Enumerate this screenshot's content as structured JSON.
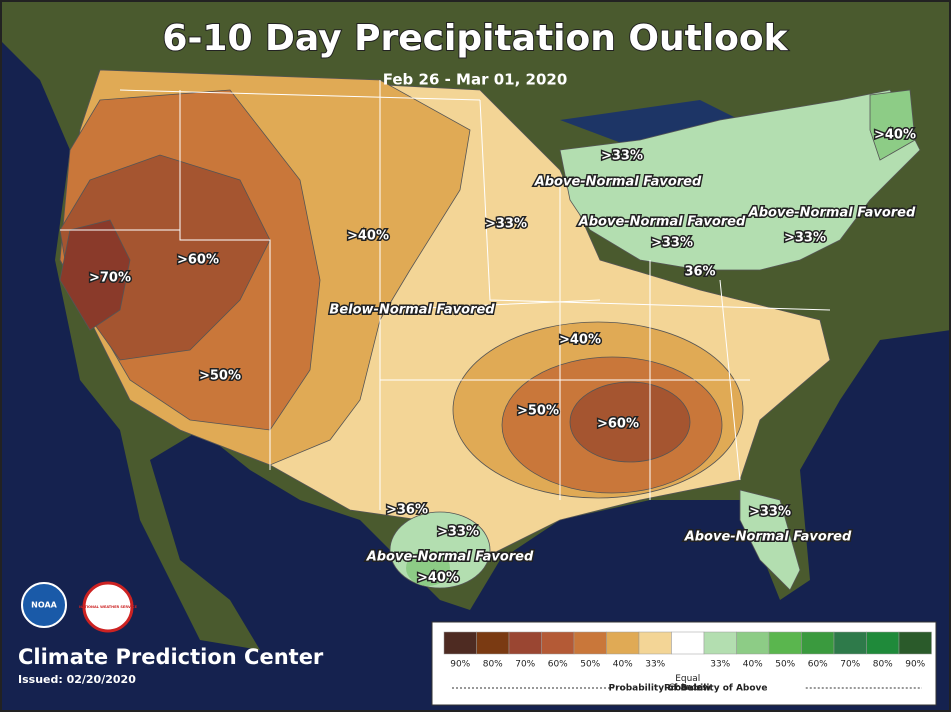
{
  "title": "6-10 Day Precipitation Outlook",
  "subtitle": "Feb 26 - Mar 01, 2020",
  "map_labels": [
    ">70%",
    ">60%",
    ">50%",
    ">40%",
    "Below-Normal Favored",
    ">33%",
    ">33%",
    "Above-Normal Favored",
    "Above-Normal Favored",
    "Above-Normal Favored",
    ">40%",
    ">33%",
    ">33%",
    "36%",
    ">40%",
    ">50%",
    ">60%",
    ">36%",
    ">33%",
    "Above-Normal Favored",
    ">40%",
    ">33%",
    "Above-Normal Favored"
  ],
  "logos": {
    "noaa": "NOAA",
    "nws": "NATIONAL WEATHER SERVICE"
  },
  "legend": {
    "below": [
      {
        "label": "90%",
        "color": "#4e2b22"
      },
      {
        "label": "80%",
        "color": "#7a3a12"
      },
      {
        "label": "70%",
        "color": "#9a4632"
      },
      {
        "label": "60%",
        "color": "#b45a36"
      },
      {
        "label": "50%",
        "color": "#c9773a"
      },
      {
        "label": "40%",
        "color": "#e0aa55"
      },
      {
        "label": "33%",
        "color": "#f3d596"
      }
    ],
    "equal": {
      "label": "Equal Chances",
      "color": "#ffffff"
    },
    "above": [
      {
        "label": "33%",
        "color": "#b3deb0"
      },
      {
        "label": "40%",
        "color": "#8dcc86"
      },
      {
        "label": "50%",
        "color": "#5ab64e"
      },
      {
        "label": "60%",
        "color": "#3a9a3e"
      },
      {
        "label": "70%",
        "color": "#2e7a4a"
      },
      {
        "label": "80%",
        "color": "#1f8a3a"
      },
      {
        "label": "90%",
        "color": "#2a5a2a"
      }
    ],
    "below_caption": "Probability of Below",
    "above_caption": "Probability of Above"
  },
  "footer": {
    "organization": "Climate Prediction Center",
    "issued": "Issued: 02/20/2020"
  }
}
